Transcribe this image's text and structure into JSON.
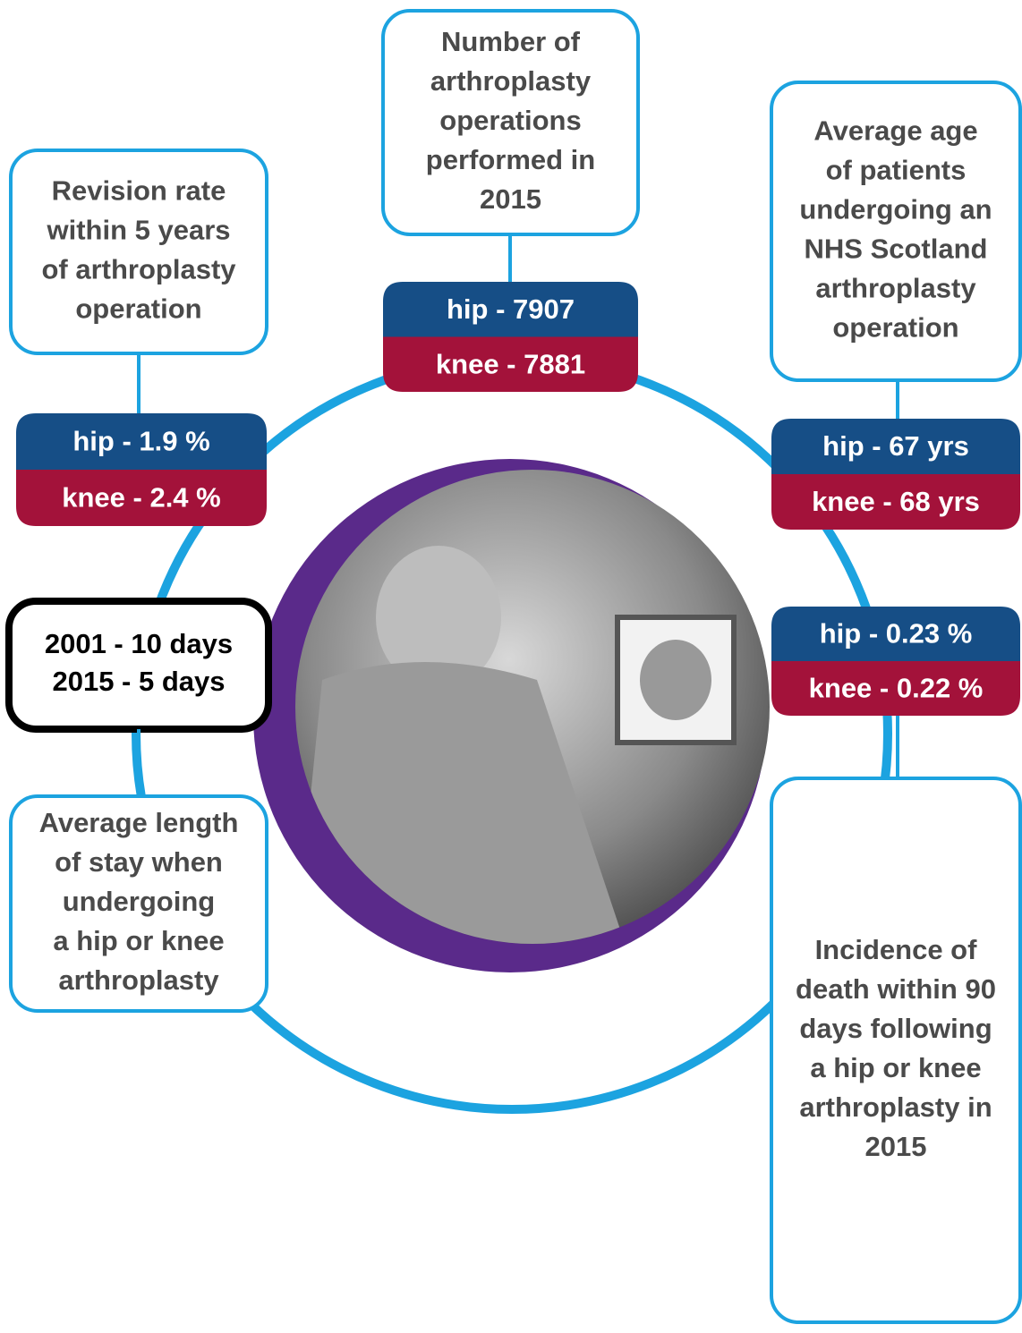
{
  "nodes": [
    {
      "description": [
        "Number of",
        "arthroplasty",
        "operations",
        "performed in",
        "2015"
      ],
      "hip": "hip - 7907",
      "knee": "knee - 7881"
    },
    {
      "description": [
        "Revision rate",
        "within 5 years",
        "of arthroplasty",
        "operation"
      ],
      "hip": "hip - 1.9 %",
      "knee": "knee - 2.4 %"
    },
    {
      "description": [
        "Average age",
        "of patients",
        "undergoing an",
        "NHS Scotland",
        "arthroplasty",
        "operation"
      ],
      "hip": "hip - 67 yrs",
      "knee": "knee - 68 yrs"
    },
    {
      "description": [
        "Incidence of",
        "death within 90",
        "days following",
        "a hip or knee",
        "arthroplasty in",
        "2015"
      ],
      "hip": "hip - 0.23 %",
      "knee": "knee - 0.22 %"
    },
    {
      "description": [
        "Average length",
        "of stay when",
        "undergoing",
        "a hip or knee",
        "arthroplasty"
      ],
      "stay": [
        "2001 - 10 days",
        "2015 - 5 days"
      ]
    }
  ]
}
